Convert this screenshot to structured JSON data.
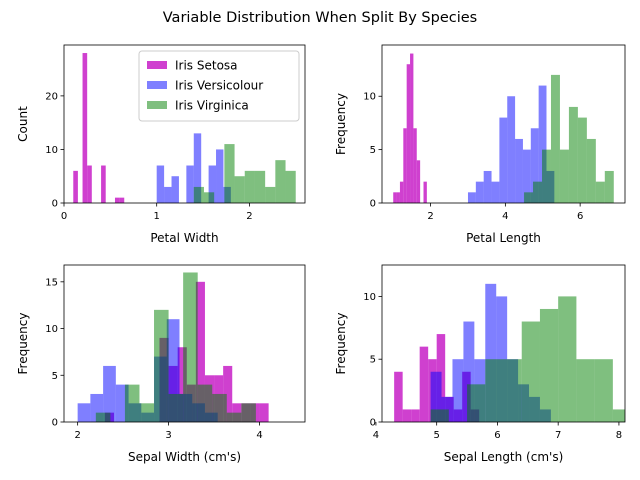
{
  "figure": {
    "suptitle": "Variable Distribution When Split By Species"
  },
  "colors": {
    "setosa": "#bf00bf",
    "versicolour": "#0000ff",
    "virginica": "#008000"
  },
  "legend": {
    "placement": "top-right of first panel",
    "entries": [
      "Iris Setosa",
      "Iris Versicolour",
      "Iris Virginica"
    ]
  },
  "chart_data": [
    {
      "type": "histogram",
      "xlabel": "Petal Width",
      "ylabel": "Count",
      "xlim": [
        0,
        2.6
      ],
      "ylim": [
        0,
        29.5
      ],
      "xticks": [
        0,
        1,
        2
      ],
      "yticks": [
        0,
        10,
        20
      ],
      "series": [
        {
          "name": "Iris Setosa",
          "color_key": "setosa",
          "alpha": 0.75,
          "start": 0.1,
          "width": 0.05,
          "values": [
            6,
            0,
            28,
            7,
            0,
            0,
            7,
            0,
            0,
            1,
            1
          ]
        },
        {
          "name": "Iris Versicolour",
          "color_key": "versicolour",
          "alpha": 0.5,
          "start": 1.0,
          "width": 0.08,
          "values": [
            7,
            3,
            5,
            0,
            7,
            13,
            0,
            7,
            10,
            3
          ]
        },
        {
          "name": "Iris Virginica",
          "color_key": "virginica",
          "alpha": 0.5,
          "start": 1.4,
          "width": 0.11,
          "values": [
            3,
            2,
            0,
            11,
            5,
            6,
            6,
            3,
            8,
            6
          ]
        }
      ]
    },
    {
      "type": "histogram",
      "xlabel": "Petal Length",
      "ylabel": "Frequency",
      "xlim": [
        0.7,
        7.2
      ],
      "ylim": [
        0,
        14.8
      ],
      "xticks": [
        2,
        4,
        6
      ],
      "yticks": [
        0,
        5,
        10
      ],
      "series": [
        {
          "name": "Iris Setosa",
          "color_key": "setosa",
          "alpha": 0.75,
          "start": 1.0,
          "width": 0.09,
          "values": [
            1,
            1,
            2,
            7,
            13,
            14,
            7,
            4,
            0,
            2
          ]
        },
        {
          "name": "Iris Versicolour",
          "color_key": "versicolour",
          "alpha": 0.5,
          "start": 3.0,
          "width": 0.21,
          "values": [
            1,
            2,
            3,
            2,
            8,
            10,
            6,
            5,
            7,
            11,
            3
          ]
        },
        {
          "name": "Iris Virginica",
          "color_key": "virginica",
          "alpha": 0.5,
          "start": 4.5,
          "width": 0.24,
          "values": [
            1,
            2,
            5,
            12,
            5,
            9,
            8,
            6,
            2,
            3
          ]
        }
      ]
    },
    {
      "type": "histogram",
      "xlabel": "Sepal Width (cm's)",
      "ylabel": "Frequency",
      "xlim": [
        1.85,
        4.5
      ],
      "ylim": [
        0,
        16.8
      ],
      "xticks": [
        2,
        3,
        4
      ],
      "yticks": [
        0,
        5,
        10,
        15
      ],
      "series": [
        {
          "name": "Iris Setosa",
          "color_key": "setosa",
          "alpha": 0.75,
          "start": 2.3,
          "width": 0.1,
          "values": [
            1,
            0,
            0,
            0,
            0,
            0,
            9,
            6,
            8,
            4,
            15,
            5,
            5,
            6,
            2,
            2,
            2,
            2
          ]
        },
        {
          "name": "Iris Versicolour",
          "color_key": "versicolour",
          "alpha": 0.5,
          "start": 2.0,
          "width": 0.14,
          "values": [
            2,
            3,
            6,
            4,
            2,
            1,
            7,
            11,
            3,
            2,
            1
          ]
        },
        {
          "name": "Iris Virginica",
          "color_key": "virginica",
          "alpha": 0.5,
          "start": 2.2,
          "width": 0.16,
          "values": [
            1,
            0,
            4,
            2,
            12,
            3,
            16,
            4,
            3,
            1,
            2
          ]
        }
      ]
    },
    {
      "type": "histogram",
      "xlabel": "Sepal Length (cm's)",
      "ylabel": "Frequency",
      "xlim": [
        4.1,
        8.1
      ],
      "ylim": [
        0,
        12.5
      ],
      "xticks": [
        4,
        5,
        6,
        7,
        8
      ],
      "yticks": [
        0,
        5,
        10
      ],
      "series": [
        {
          "name": "Iris Setosa",
          "color_key": "setosa",
          "alpha": 0.75,
          "start": 4.3,
          "width": 0.14,
          "values": [
            4,
            1,
            1,
            6,
            5,
            7,
            2,
            1,
            4,
            1
          ]
        },
        {
          "name": "Iris Versicolour",
          "color_key": "versicolour",
          "alpha": 0.5,
          "start": 4.9,
          "width": 0.18,
          "values": [
            4,
            2,
            5,
            8,
            5,
            11,
            10,
            5,
            3,
            2,
            1
          ]
        },
        {
          "name": "Iris Virginica",
          "color_key": "virginica",
          "alpha": 0.5,
          "start": 4.9,
          "width": 0.3,
          "values": [
            1,
            0,
            3,
            5,
            5,
            8,
            9,
            10,
            5,
            5,
            1,
            6
          ]
        }
      ]
    }
  ]
}
